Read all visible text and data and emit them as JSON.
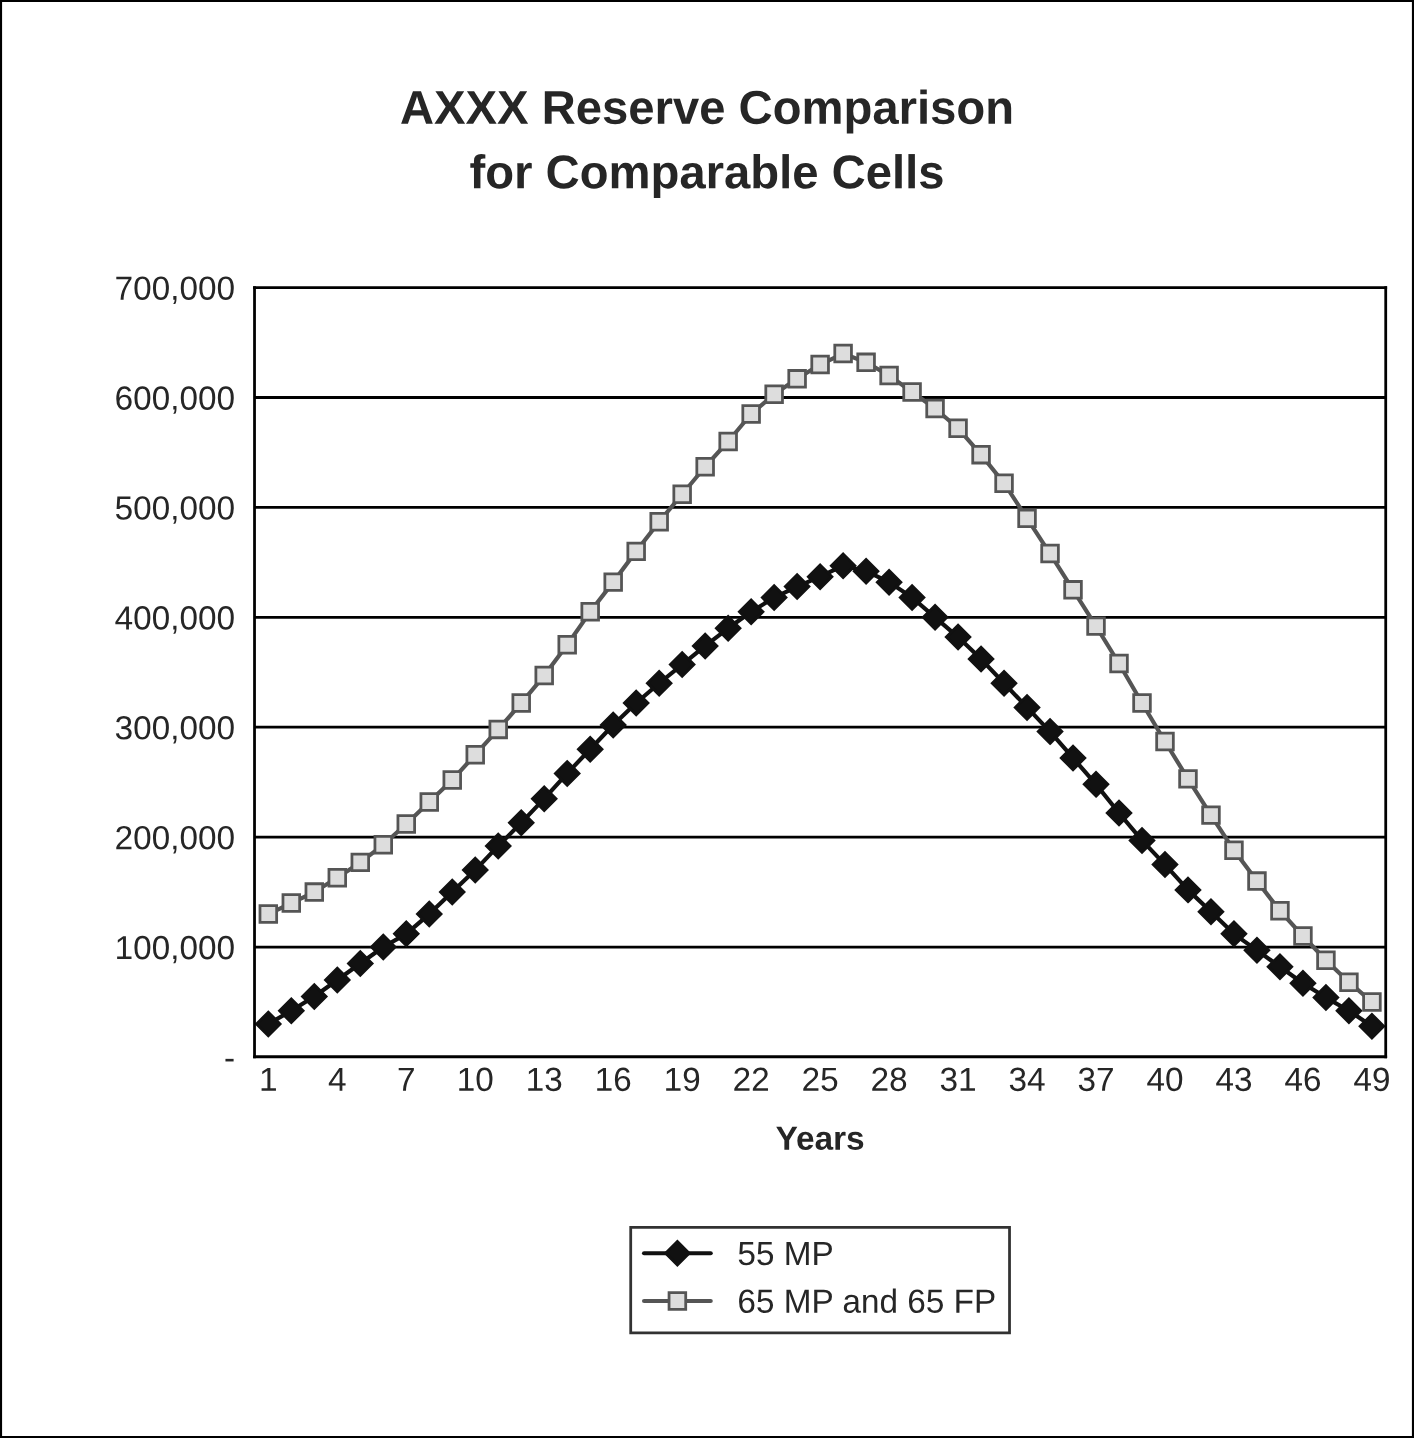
{
  "chart_data": {
    "type": "line",
    "title": "AXXX Reserve Comparison\nfor Comparable Cells",
    "xlabel": "Years",
    "categories": [
      "1",
      null,
      null,
      "4",
      null,
      null,
      "7",
      null,
      null,
      "10",
      null,
      null,
      "13",
      null,
      null,
      "16",
      null,
      null,
      "19",
      null,
      null,
      "22",
      null,
      null,
      "25",
      null,
      null,
      "28",
      null,
      null,
      "31",
      null,
      null,
      "34",
      null,
      null,
      "37",
      null,
      null,
      "40",
      null,
      null,
      "43",
      null,
      null,
      "46",
      null,
      null,
      "49"
    ],
    "series": [
      {
        "name": "55 MP",
        "color": "#111111",
        "marker": "diamond",
        "values": [
          30000,
          42000,
          55000,
          70000,
          85000,
          100000,
          112000,
          130000,
          150000,
          170000,
          192000,
          213000,
          235000,
          258000,
          280000,
          302000,
          322000,
          340000,
          357000,
          374000,
          390000,
          405000,
          418000,
          428000,
          437000,
          447000,
          442000,
          432000,
          418000,
          400000,
          382000,
          362000,
          340000,
          318000,
          296000,
          272000,
          248000,
          222000,
          197000,
          175000,
          152000,
          132000,
          112000,
          97000,
          82000,
          67000,
          54000,
          42000,
          28000
        ]
      },
      {
        "name": "65 MP and 65 FP",
        "color": "#555555",
        "marker": "square",
        "values": [
          130000,
          140000,
          150000,
          163000,
          177000,
          193000,
          212000,
          232000,
          252000,
          275000,
          298000,
          322000,
          347000,
          375000,
          405000,
          432000,
          460000,
          487000,
          512000,
          537000,
          560000,
          585000,
          603000,
          617000,
          630000,
          640000,
          632000,
          620000,
          605000,
          590000,
          572000,
          548000,
          522000,
          490000,
          458000,
          425000,
          392000,
          358000,
          322000,
          287000,
          253000,
          220000,
          188000,
          160000,
          133000,
          110000,
          88000,
          68000,
          50000
        ]
      }
    ],
    "ylim": [
      0,
      700000
    ],
    "yticks": [
      {
        "value": 0,
        "label": "-"
      },
      {
        "value": 100000,
        "label": "100,000"
      },
      {
        "value": 200000,
        "label": "200,000"
      },
      {
        "value": 300000,
        "label": "300,000"
      },
      {
        "value": 400000,
        "label": "400,000"
      },
      {
        "value": 500000,
        "label": "500,000"
      },
      {
        "value": 600000,
        "label": "600,000"
      },
      {
        "value": 700000,
        "label": "700,000"
      }
    ],
    "grid": "y",
    "legend": "bottom"
  }
}
